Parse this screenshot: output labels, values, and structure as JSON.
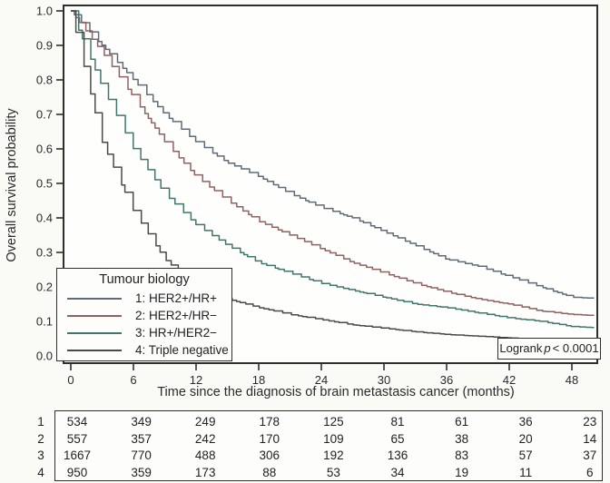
{
  "figure": {
    "y_axis": {
      "ticks": [
        "1.0",
        "0.9",
        "0.8",
        "0.7",
        "0.6",
        "0.5",
        "0.4",
        "0.3",
        "0.2",
        "0.1",
        "0.0"
      ]
    },
    "x_axis": {
      "ticks": [
        "0",
        "6",
        "12",
        "18",
        "24",
        "30",
        "36",
        "42",
        "48"
      ]
    },
    "legend": {
      "title": "Tumour biology"
    },
    "annotation": {
      "text_before": "Logrank",
      "p": "p",
      "text_after": "< 0.0001"
    }
  },
  "chart_data": {
    "type": "line",
    "subtype": "kaplan-meier-step",
    "xlabel": "Time since the diagnosis of brain metastasis cancer (months)",
    "ylabel": "Overall survival probability",
    "xlim": [
      0,
      48
    ],
    "ylim": [
      0.0,
      1.0
    ],
    "grid": false,
    "legend_position": "lower-left",
    "x": [
      0,
      3,
      6,
      9,
      12,
      15,
      18,
      21,
      24,
      27,
      30,
      33,
      36,
      39,
      42,
      45,
      48
    ],
    "series": [
      {
        "name": "1: HER2+/HR+",
        "color": "#5e6b76",
        "values": [
          1.0,
          0.9,
          0.8,
          0.7,
          0.62,
          0.56,
          0.52,
          0.47,
          0.43,
          0.4,
          0.36,
          0.32,
          0.28,
          0.26,
          0.23,
          0.2,
          0.17
        ]
      },
      {
        "name": "2: HER2+/HR−",
        "color": "#8d625f",
        "values": [
          1.0,
          0.88,
          0.75,
          0.62,
          0.52,
          0.45,
          0.39,
          0.35,
          0.31,
          0.27,
          0.24,
          0.21,
          0.185,
          0.165,
          0.15,
          0.13,
          0.12
        ]
      },
      {
        "name": "3: HR+/HER2−",
        "color": "#41756c",
        "values": [
          1.0,
          0.78,
          0.6,
          0.47,
          0.38,
          0.32,
          0.27,
          0.24,
          0.21,
          0.19,
          0.17,
          0.15,
          0.14,
          0.125,
          0.11,
          0.1,
          0.085
        ]
      },
      {
        "name": "4: Triple negative",
        "color": "#4a4b47",
        "values": [
          1.0,
          0.62,
          0.42,
          0.28,
          0.2,
          0.165,
          0.14,
          0.12,
          0.105,
          0.09,
          0.08,
          0.07,
          0.062,
          0.057,
          0.052,
          0.048,
          0.045
        ]
      }
    ],
    "annotation_text": "Logrank p < 0.0001",
    "risk_table": {
      "row_labels": [
        "1",
        "2",
        "3",
        "4"
      ],
      "time_points": [
        0,
        6,
        12,
        18,
        24,
        30,
        36,
        42,
        48
      ],
      "rows": [
        [
          "534",
          "349",
          "249",
          "178",
          "125",
          "81",
          "61",
          "36",
          "23"
        ],
        [
          "557",
          "357",
          "242",
          "170",
          "109",
          "65",
          "38",
          "20",
          "14"
        ],
        [
          "1667",
          "770",
          "488",
          "306",
          "192",
          "136",
          "83",
          "57",
          "37"
        ],
        [
          "950",
          "359",
          "173",
          "88",
          "53",
          "34",
          "19",
          "11",
          "6"
        ]
      ]
    }
  }
}
